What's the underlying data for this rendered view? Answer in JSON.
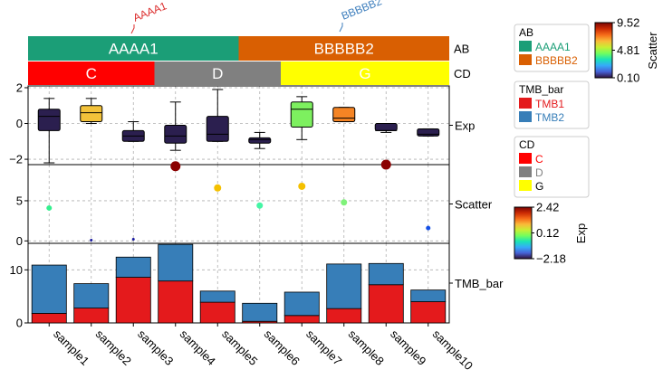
{
  "chart_data": {
    "type": "heatmap",
    "samples": [
      "sample1",
      "sample2",
      "sample3",
      "sample4",
      "sample5",
      "sample6",
      "sample7",
      "sample8",
      "sample9",
      "sample10"
    ],
    "top_labels": [
      {
        "text": "AAAA1",
        "color": "#dc2f2f"
      },
      {
        "text": "BBBBB2",
        "color": "#3d7ebd"
      }
    ],
    "annotations": [
      {
        "name": "AB",
        "segments": [
          {
            "label": "AAAA1",
            "from": 0,
            "to": 5,
            "color": "#1b9e77",
            "text_color": "#ffffff"
          },
          {
            "label": "BBBBB2",
            "from": 5,
            "to": 10,
            "color": "#d95f02",
            "text_color": "#ffffff"
          }
        ]
      },
      {
        "name": "CD",
        "segments": [
          {
            "label": "C",
            "from": 0,
            "to": 3,
            "color": "#ff0000",
            "text_color": "#ffffff"
          },
          {
            "label": "D",
            "from": 3,
            "to": 6,
            "color": "#808080",
            "text_color": "#ffffff"
          },
          {
            "label": "G",
            "from": 6,
            "to": 10,
            "color": "#ffff00",
            "text_color": "#ffffff"
          }
        ]
      }
    ],
    "exp": {
      "name": "Exp",
      "yticks": [
        -2,
        0,
        2
      ],
      "ylim": [
        -2.3,
        2.1
      ],
      "boxes": [
        {
          "min": -2.2,
          "q1": -0.4,
          "median": 0.4,
          "q3": 0.8,
          "max": 1.4,
          "color": "#2b1f4f"
        },
        {
          "min": 0.0,
          "q1": 0.1,
          "median": 0.6,
          "q3": 1.0,
          "max": 1.4,
          "color": "#f3c23a"
        },
        {
          "min": -1.0,
          "q1": -1.0,
          "median": -0.7,
          "q3": -0.4,
          "max": 0.1,
          "color": "#2b1f4f"
        },
        {
          "min": -1.5,
          "q1": -1.1,
          "median": -0.7,
          "q3": -0.1,
          "max": 1.2,
          "color": "#2b1f4f"
        },
        {
          "min": -1.0,
          "q1": -1.0,
          "median": -0.6,
          "q3": 0.4,
          "max": 1.9,
          "color": "#2b1f4f"
        },
        {
          "min": -1.4,
          "q1": -1.1,
          "median": -0.9,
          "q3": -0.8,
          "max": -0.5,
          "color": "#2b1f4f"
        },
        {
          "min": -0.9,
          "q1": -0.2,
          "median": 0.8,
          "q3": 1.2,
          "max": 1.5,
          "color": "#7df05f"
        },
        {
          "min": 0.1,
          "q1": 0.1,
          "median": 0.3,
          "q3": 0.9,
          "max": 0.9,
          "color": "#f58424"
        },
        {
          "min": -0.5,
          "q1": -0.4,
          "median": -0.4,
          "q3": -0.0,
          "max": -0.0,
          "color": "#2b1f4f"
        },
        {
          "min": -0.7,
          "q1": -0.7,
          "median": -0.6,
          "q3": -0.3,
          "max": -0.3,
          "color": "#2b1f4f"
        }
      ],
      "colorbar": {
        "title": "Exp",
        "min": -2.18,
        "mid": 0.12,
        "max": 2.42,
        "labels": [
          "2.42",
          "0.12",
          "−2.18"
        ]
      }
    },
    "scatter": {
      "name": "Scatter",
      "yticks": [
        0,
        5
      ],
      "ylim": [
        -0.3,
        9.5
      ],
      "points": [
        {
          "value": 4.1,
          "size": 3,
          "color": "#33f08e"
        },
        {
          "value": 0.1,
          "size": 1.5,
          "color": "#1a1aa0"
        },
        {
          "value": 0.2,
          "size": 1.5,
          "color": "#1a1aa0"
        },
        {
          "value": 9.3,
          "size": 5.5,
          "color": "#8b0000"
        },
        {
          "value": 6.6,
          "size": 4,
          "color": "#f4c000"
        },
        {
          "value": 4.4,
          "size": 3.5,
          "color": "#45f5a5"
        },
        {
          "value": 6.8,
          "size": 4,
          "color": "#f4c000"
        },
        {
          "value": 4.8,
          "size": 3.5,
          "color": "#7ff27a"
        },
        {
          "value": 9.5,
          "size": 5.5,
          "color": "#8b0000"
        },
        {
          "value": 1.6,
          "size": 2.5,
          "color": "#1450e6"
        }
      ],
      "colorbar": {
        "title": "Scatter",
        "labels": [
          "9.52",
          "4.81",
          "0.10"
        ]
      }
    },
    "tmb_bar": {
      "name": "TMB_bar",
      "yticks": [
        0,
        10
      ],
      "ylim": [
        0,
        15
      ],
      "series": [
        {
          "name": "TMB1",
          "color": "#e41a1c",
          "values": [
            1.8,
            2.8,
            8.6,
            7.9,
            3.9,
            0.3,
            1.4,
            2.7,
            7.2,
            4.0
          ]
        },
        {
          "name": "TMB2",
          "color": "#377eb8",
          "values": [
            9.1,
            4.6,
            3.8,
            6.9,
            2.1,
            3.4,
            4.4,
            8.4,
            4.0,
            2.2
          ]
        }
      ]
    },
    "legends": [
      {
        "title": "AB",
        "items": [
          {
            "label": "AAAA1",
            "color": "#1b9e77"
          },
          {
            "label": "BBBBB2",
            "color": "#d95f02"
          }
        ]
      },
      {
        "title": "TMB_bar",
        "items": [
          {
            "label": "TMB1",
            "color": "#e41a1c"
          },
          {
            "label": "TMB2",
            "color": "#377eb8"
          }
        ]
      },
      {
        "title": "CD",
        "items": [
          {
            "label": "C",
            "color": "#ff0000",
            "text_color": "#ff0000"
          },
          {
            "label": "D",
            "color": "#808080",
            "text_color": "#808080"
          },
          {
            "label": "G",
            "color": "#ffff00",
            "text_color": "#000000"
          }
        ]
      }
    ],
    "grid": true
  }
}
